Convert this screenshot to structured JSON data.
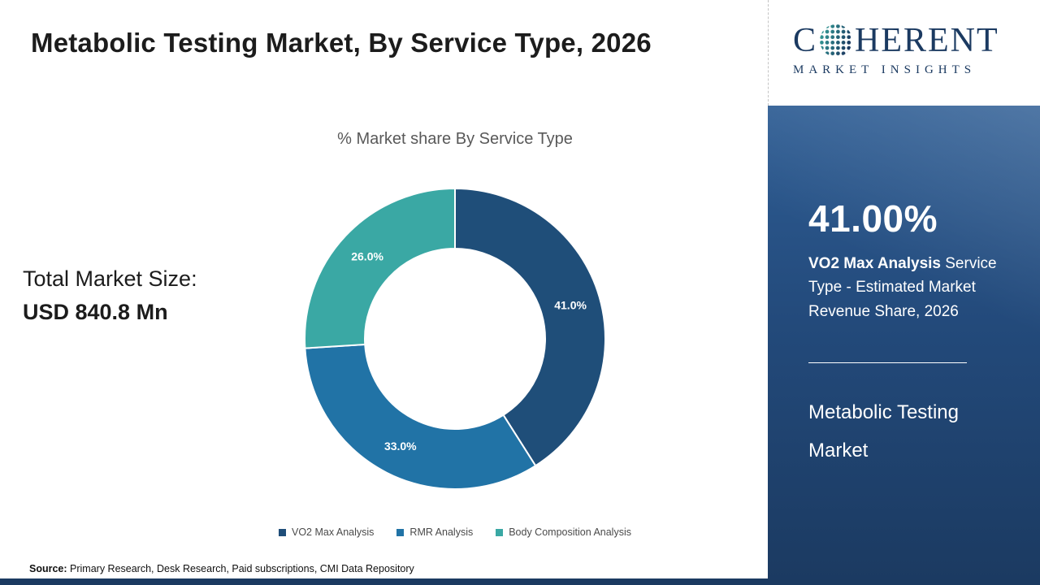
{
  "header": {
    "title": "Metabolic Testing Market,  By Service Type, 2026",
    "logo": {
      "prefix": "C",
      "suffix": "HERENT",
      "tagline": "MARKET INSIGHTS",
      "brand_color": "#1b3a61"
    }
  },
  "main": {
    "total_label": "Total Market Size:",
    "total_value": "USD 840.8 Mn"
  },
  "chart_data": {
    "type": "pie",
    "donut": true,
    "title": "% Market share  By Service Type",
    "categories": [
      "VO2 Max Analysis",
      "RMR Analysis",
      "Body Composition Analysis"
    ],
    "values": [
      41.0,
      33.0,
      26.0
    ],
    "slice_labels": [
      "41.0%",
      "33.0%",
      "26.0%"
    ],
    "colors": [
      "#1f4e79",
      "#2173a6",
      "#3aa8a4"
    ],
    "start_angle_deg": 0,
    "direction": "clockwise",
    "legend_position": "bottom"
  },
  "sidebar": {
    "stat_value": "41.00%",
    "stat_bold": "VO2 Max Analysis",
    "stat_rest": " Service Type - Estimated Market Revenue Share, 2026",
    "market_name": "Metabolic Testing Market",
    "accent_bg": "#234a7b"
  },
  "footer": {
    "source_label": "Source:",
    "source_text": " Primary Research, Desk Research, Paid subscriptions, CMI Data Repository"
  }
}
